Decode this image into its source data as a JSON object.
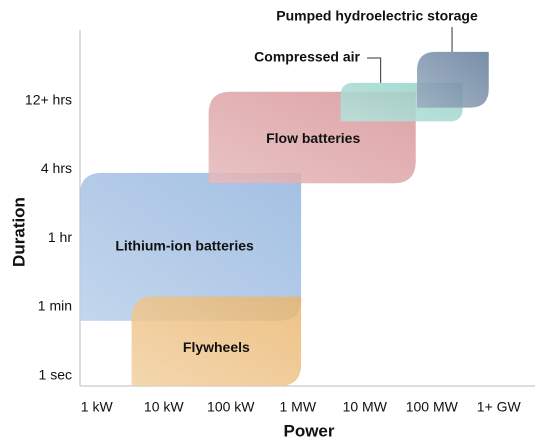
{
  "chart_data": {
    "type": "region",
    "x_label": "Power",
    "y_label": "Duration",
    "categories": [
      "1 kW",
      "10 kW",
      "100 kW",
      "1 MW",
      "10 MW",
      "100 MW",
      "1+ GW"
    ],
    "y_categories": [
      "1 sec",
      "1 min",
      "1 hr",
      "4 hrs",
      "12+ hrs"
    ],
    "xlim": [
      -0.25,
      6.6
    ],
    "ylim": [
      -0.15,
      5.0
    ],
    "series": [
      {
        "name": "Lithium-ion batteries",
        "color": "#8fb2dd",
        "x": [
          -0.25,
          3.05
        ],
        "y": [
          0.8,
          2.95
        ]
      },
      {
        "name": "Flywheels",
        "color": "#eab46a",
        "x": [
          0.52,
          3.05
        ],
        "y": [
          -0.15,
          1.15
        ]
      },
      {
        "name": "Flow batteries",
        "color": "#d68f93",
        "x": [
          1.67,
          4.76
        ],
        "y": [
          2.8,
          4.13
        ]
      },
      {
        "name": "Compressed air",
        "color": "#8ccfc4",
        "x": [
          3.64,
          5.46
        ],
        "y": [
          3.7,
          4.26
        ]
      },
      {
        "name": "Pumped hydroelectric storage",
        "color": "#5a7696",
        "x": [
          4.78,
          5.85
        ],
        "y": [
          3.9,
          4.71
        ]
      }
    ]
  }
}
